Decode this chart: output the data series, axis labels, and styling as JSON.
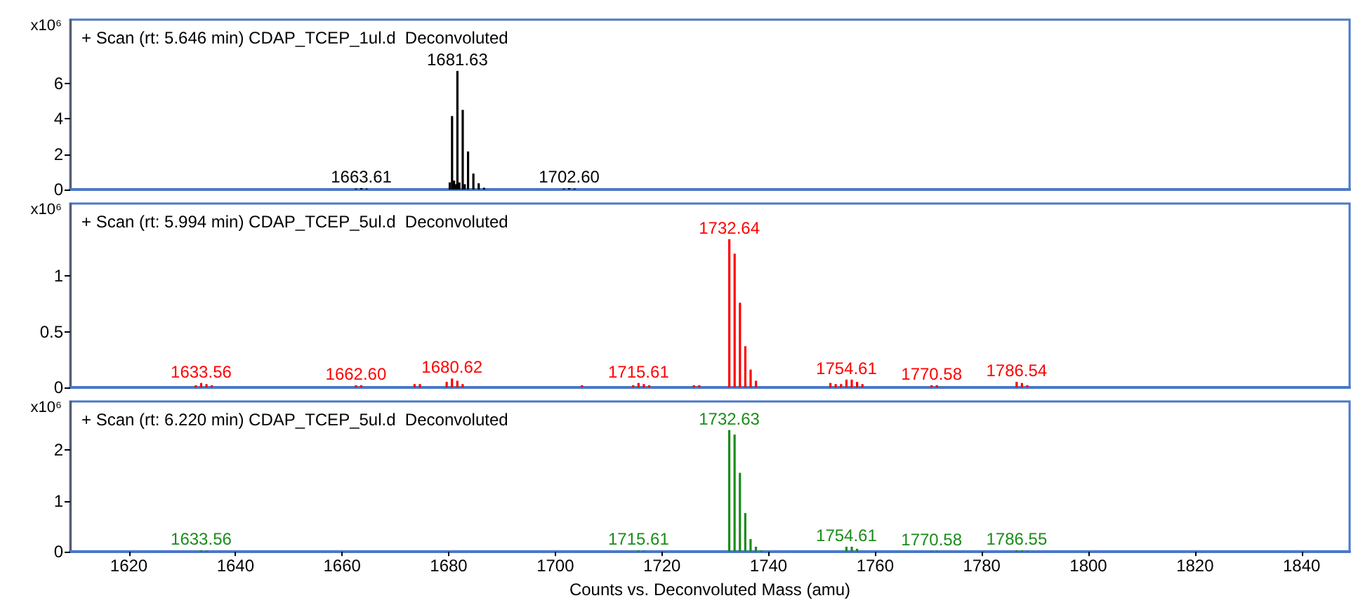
{
  "chart_data": [
    {
      "type": "bar",
      "title": "+ Scan (rt: 5.646 min) CDAP_TCEP_1ul.d  Deconvoluted",
      "ylabel": "x10⁶",
      "color": "#000000",
      "x": [
        1662.6,
        1663.61,
        1664.6,
        1680.2,
        1680.63,
        1681.0,
        1681.3,
        1681.63,
        1682.0,
        1682.63,
        1683.0,
        1683.63,
        1684.63,
        1685.63,
        1686.63,
        1701.6,
        1702.6,
        1703.6
      ],
      "values": [
        0.05,
        0.08,
        0.05,
        0.4,
        4.15,
        0.5,
        0.3,
        6.7,
        0.4,
        4.5,
        0.3,
        2.15,
        0.9,
        0.35,
        0.1,
        0.05,
        0.08,
        0.05
      ],
      "xlim": [
        1609,
        1849
      ],
      "xticks": [
        1620,
        1640,
        1660,
        1680,
        1700,
        1720,
        1740,
        1760,
        1780,
        1800,
        1820,
        1840
      ],
      "ylim": [
        0,
        9.6
      ],
      "yticks": [
        0,
        2,
        4,
        6
      ],
      "tick_labels": "y",
      "annotations": [
        {
          "text": "1681.63",
          "x": 1681.63,
          "y": 6.7
        },
        {
          "text": "1663.61",
          "x": 1663.61,
          "y": 0.08
        },
        {
          "text": "1702.60",
          "x": 1702.6,
          "y": 0.08
        }
      ]
    },
    {
      "type": "bar",
      "title": "+ Scan (rt: 5.994 min) CDAP_TCEP_5ul.d  Deconvoluted",
      "ylabel": "x10⁶",
      "color": "#ff0000",
      "x": [
        1632.56,
        1633.56,
        1634.56,
        1635.56,
        1662.6,
        1663.6,
        1673.6,
        1674.6,
        1679.62,
        1680.62,
        1681.62,
        1682.62,
        1705,
        1714.61,
        1715.61,
        1716.61,
        1717.61,
        1726,
        1727,
        1732.64,
        1733.64,
        1734.64,
        1735.64,
        1736.64,
        1737.64,
        1751.6,
        1752.6,
        1753.6,
        1754.61,
        1755.61,
        1756.61,
        1757.61,
        1770.58,
        1771.58,
        1786.54,
        1787.54,
        1788.54
      ],
      "values": [
        0.02,
        0.04,
        0.03,
        0.02,
        0.02,
        0.02,
        0.03,
        0.03,
        0.05,
        0.08,
        0.06,
        0.03,
        0.02,
        0.02,
        0.04,
        0.03,
        0.02,
        0.02,
        0.02,
        1.33,
        1.2,
        0.76,
        0.37,
        0.16,
        0.06,
        0.04,
        0.03,
        0.03,
        0.07,
        0.07,
        0.05,
        0.03,
        0.02,
        0.02,
        0.05,
        0.04,
        0.02
      ],
      "xlim": [
        1609,
        1849
      ],
      "xticks": [
        1620,
        1640,
        1660,
        1680,
        1700,
        1720,
        1740,
        1760,
        1780,
        1800,
        1820,
        1840
      ],
      "ylim": [
        0,
        1.65
      ],
      "yticks": [
        0,
        0.5,
        1
      ],
      "tick_labels": "y",
      "annotations": [
        {
          "text": "1633.56",
          "x": 1633.56,
          "y": 0.04
        },
        {
          "text": "1662.60",
          "x": 1662.6,
          "y": 0.02
        },
        {
          "text": "1680.62",
          "x": 1680.62,
          "y": 0.08
        },
        {
          "text": "1715.61",
          "x": 1715.61,
          "y": 0.04
        },
        {
          "text": "1732.64",
          "x": 1732.64,
          "y": 1.33
        },
        {
          "text": "1754.61",
          "x": 1754.61,
          "y": 0.07
        },
        {
          "text": "1770.58",
          "x": 1770.58,
          "y": 0.02
        },
        {
          "text": "1786.54",
          "x": 1786.54,
          "y": 0.05
        }
      ]
    },
    {
      "type": "bar",
      "title": "+ Scan (rt: 6.220 min) CDAP_TCEP_5ul.d  Deconvoluted",
      "ylabel": "x10⁶",
      "xlabel": "Counts vs. Deconvoluted Mass (amu)",
      "color": "#1a8c1a",
      "x": [
        1633.56,
        1634.56,
        1715.61,
        1716.61,
        1732.63,
        1733.63,
        1734.63,
        1735.63,
        1736.63,
        1737.63,
        1738.63,
        1754.61,
        1755.61,
        1756.61,
        1770.58,
        1771.58,
        1786.55,
        1787.55,
        1788.55
      ],
      "values": [
        0.03,
        0.02,
        0.03,
        0.02,
        2.39,
        2.3,
        1.55,
        0.76,
        0.25,
        0.1,
        0.03,
        0.1,
        0.1,
        0.06,
        0.02,
        0.02,
        0.03,
        0.03,
        0.02
      ],
      "xlim": [
        1609,
        1849
      ],
      "xticks": [
        1620,
        1640,
        1660,
        1680,
        1700,
        1720,
        1740,
        1760,
        1780,
        1800,
        1820,
        1840
      ],
      "ylim": [
        0,
        2.95
      ],
      "yticks": [
        0,
        1,
        2
      ],
      "annotations": [
        {
          "text": "1633.56",
          "x": 1633.56,
          "y": 0.03
        },
        {
          "text": "1715.61",
          "x": 1715.61,
          "y": 0.03
        },
        {
          "text": "1732.63",
          "x": 1732.63,
          "y": 2.39
        },
        {
          "text": "1754.61",
          "x": 1754.61,
          "y": 0.1
        },
        {
          "text": "1770.58",
          "x": 1770.58,
          "y": 0.02
        },
        {
          "text": "1786.55",
          "x": 1786.55,
          "y": 0.03
        }
      ]
    }
  ]
}
